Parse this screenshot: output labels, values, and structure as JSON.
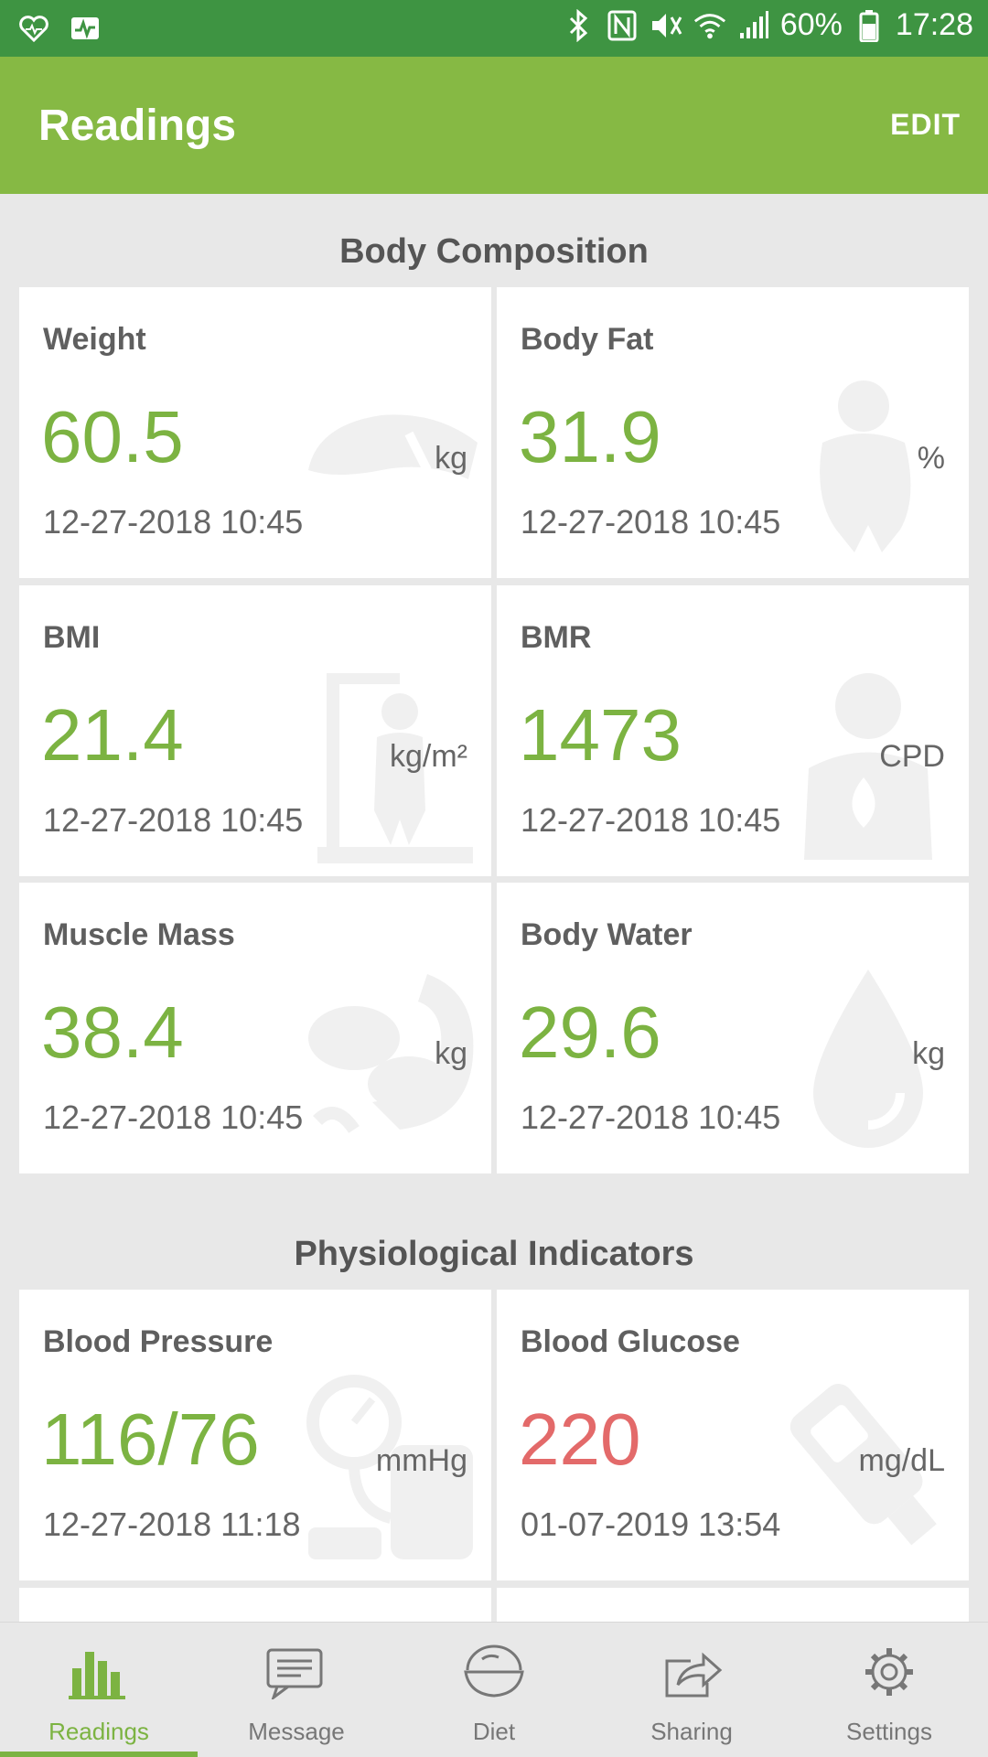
{
  "status_bar": {
    "battery": "60%",
    "time": "17:28"
  },
  "header": {
    "title": "Readings",
    "edit_label": "EDIT"
  },
  "sections": [
    {
      "title": "Body Composition",
      "cards": [
        {
          "title": "Weight",
          "value": "60.5",
          "unit": "kg",
          "datetime": "12-27-2018 10:45",
          "icon": "scale-icon"
        },
        {
          "title": "Body Fat",
          "value": "31.9",
          "unit": "%",
          "datetime": "12-27-2018 10:45",
          "icon": "body-fat-icon"
        },
        {
          "title": "BMI",
          "value": "21.4",
          "unit": "kg/m²",
          "datetime": "12-27-2018 10:45",
          "icon": "height-scale-icon"
        },
        {
          "title": "BMR",
          "value": "1473",
          "unit": "CPD",
          "datetime": "12-27-2018 10:45",
          "icon": "metabolism-icon"
        },
        {
          "title": "Muscle Mass",
          "value": "38.4",
          "unit": "kg",
          "datetime": "12-27-2018 10:45",
          "icon": "muscle-icon"
        },
        {
          "title": "Body Water",
          "value": "29.6",
          "unit": "kg",
          "datetime": "12-27-2018 10:45",
          "icon": "water-drop-icon"
        }
      ]
    },
    {
      "title": "Physiological Indicators",
      "cards": [
        {
          "title": "Blood Pressure",
          "value": "116/76",
          "unit": "mmHg",
          "datetime": "12-27-2018 11:18",
          "icon": "blood-pressure-icon"
        },
        {
          "title": "Blood Glucose",
          "value": "220",
          "unit": "mg/dL",
          "datetime": "01-07-2019 13:54",
          "icon": "glucose-meter-icon",
          "alert_color": "#e36a6a"
        }
      ]
    }
  ],
  "nav": [
    {
      "label": "Readings",
      "icon": "bar-chart-icon",
      "active": true
    },
    {
      "label": "Message",
      "icon": "message-icon"
    },
    {
      "label": "Diet",
      "icon": "diet-bowl-icon"
    },
    {
      "label": "Sharing",
      "icon": "share-icon"
    },
    {
      "label": "Settings",
      "icon": "gear-icon"
    }
  ],
  "colors": {
    "status_bar": "#3e9442",
    "app_bar": "#86b944",
    "accent": "#7cb342",
    "alert": "#e36a6a"
  }
}
